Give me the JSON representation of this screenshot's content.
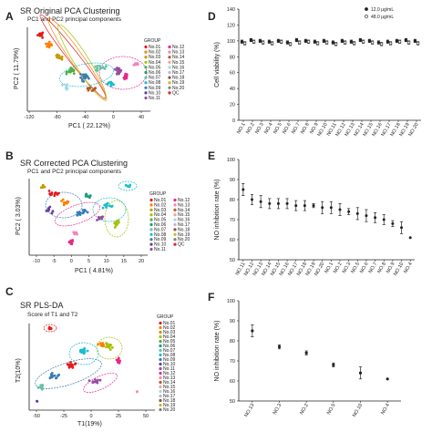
{
  "colors": {
    "group": [
      "#e41a1c",
      "#ff7f00",
      "#c49a00",
      "#a6c000",
      "#4daf4a",
      "#1b9e77",
      "#66c2a5",
      "#17becf",
      "#377eb8",
      "#6a3d9a",
      "#984ea3",
      "#e7298a",
      "#f781bf",
      "#b15928",
      "#ff9896",
      "#9edae5",
      "#c5b0d5",
      "#8c564b",
      "#bcbd22",
      "#7f7f7f",
      "#d62728"
    ],
    "ink": "#222222"
  },
  "chart_data": [
    {
      "panel": "A",
      "type": "scatter",
      "title": "SR Original PCA Clustering",
      "subtitle": "PC1 and PC2 principal components",
      "xlabel": "PC1 ( 22.12%)",
      "ylabel": "PC2 ( 11.79%)",
      "xticks": [
        "-120",
        "-80",
        "-40",
        "0",
        "40"
      ],
      "xlim": [
        -120,
        80
      ],
      "ylim": [
        -80,
        80
      ],
      "grid": false,
      "legend_title": "GROUP",
      "legend": [
        "No.01",
        "No.02",
        "No.03",
        "No.04",
        "No.05",
        "No.06",
        "No.07",
        "No.08",
        "No.09",
        "No.10",
        "No.11",
        "No.12",
        "No.13",
        "No.14",
        "No.15",
        "No.16",
        "No.17",
        "No.18",
        "No.19",
        "No.20",
        "QC"
      ],
      "legend_placement": "right"
    },
    {
      "panel": "B",
      "type": "scatter",
      "title": "SR Corrected PCA Clustering",
      "subtitle": "PC1 and PC2 principal components",
      "xlabel": "PC1 ( 4.81%)",
      "ylabel": "PC2 ( 3.03%)",
      "xticks": [
        "-10",
        "-5",
        "0",
        "5",
        "10",
        "15",
        "20"
      ],
      "xlim": [
        -15,
        22
      ],
      "ylim": [
        -22,
        12
      ],
      "grid": false,
      "legend_title": "GROUP",
      "legend": [
        "No.01",
        "No.02",
        "No.03",
        "No.04",
        "No.05",
        "No.06",
        "No.07",
        "No.08",
        "No.09",
        "No.10",
        "No.11",
        "No.12",
        "No.13",
        "No.14",
        "No.15",
        "No.16",
        "No.17",
        "No.18",
        "No.19",
        "No.20",
        "QC"
      ],
      "legend_placement": "right"
    },
    {
      "panel": "C",
      "type": "scatter",
      "title": "SR PLS-DA",
      "subtitle": "Score of T1 and T2",
      "xlabel": "T1(19%)",
      "ylabel": "T2(10%)",
      "xticks": [
        "-50",
        "-25",
        "0",
        "25",
        "50"
      ],
      "xlim": [
        -60,
        60
      ],
      "ylim": [
        -50,
        30
      ],
      "grid": false,
      "legend_title": "GROUP",
      "legend": [
        "No.01",
        "No.02",
        "No.03",
        "No.04",
        "No.05",
        "No.06",
        "No.07",
        "No.08",
        "No.09",
        "No.10",
        "No.11",
        "No.12",
        "No.13",
        "No.14",
        "No.15",
        "No.16",
        "No.17",
        "No.18",
        "No.19",
        "No.20"
      ],
      "legend_placement": "right"
    },
    {
      "panel": "D",
      "type": "scatter",
      "xlabel": "",
      "ylabel": "Cell viability (%)",
      "categories": [
        "NO.1",
        "NO.2",
        "NO.3",
        "NO.4",
        "NO.5",
        "NO.6",
        "NO.7",
        "NO.8",
        "NO.9",
        "NO.10",
        "NO.11",
        "NO.12",
        "NO.13",
        "NO.14",
        "NO.15",
        "NO.16",
        "NO.17",
        "NO.18",
        "NO.19",
        "NO.20"
      ],
      "ylim": [
        0,
        140
      ],
      "yticks": [
        0,
        20,
        40,
        60,
        80,
        100,
        120,
        140
      ],
      "series": [
        {
          "name": "12.0 μg/mL",
          "values": [
            99,
            101,
            100,
            99,
            100,
            98,
            101,
            100,
            99,
            100,
            98,
            100,
            99,
            101,
            100,
            98,
            99,
            100,
            101,
            100
          ]
        },
        {
          "name": "48.0 μg/mL",
          "values": [
            97,
            99,
            98,
            97,
            99,
            96,
            98,
            99,
            97,
            98,
            96,
            98,
            97,
            99,
            98,
            96,
            97,
            99,
            98,
            97
          ]
        }
      ],
      "error": 2,
      "legend_placement": "top-right"
    },
    {
      "panel": "E",
      "type": "scatter",
      "xlabel": "",
      "ylabel": "NO inhibition rate (%)",
      "categories": [
        "NO.11",
        "NO.12",
        "NO.13",
        "NO.14",
        "NO.15",
        "NO.16",
        "NO.17",
        "NO.18",
        "NO.19",
        "NO.20",
        "NO.1",
        "NO.2",
        "NO.3",
        "NO.5",
        "NO.6",
        "NO.7",
        "NO.8",
        "NO.9",
        "NO.10",
        "NO.4"
      ],
      "values": [
        85,
        80,
        79,
        78,
        78,
        78,
        77,
        77,
        77,
        76,
        76,
        75,
        74,
        73,
        72,
        71,
        70,
        68,
        66,
        61
      ],
      "errors": [
        3,
        2.5,
        3,
        2.5,
        2.5,
        2.5,
        2.5,
        2.5,
        1,
        3,
        3,
        3,
        1.5,
        3,
        3,
        2.5,
        2.5,
        1.5,
        3,
        0
      ],
      "ylim": [
        50,
        100
      ],
      "yticks": [
        50,
        60,
        70,
        80,
        90,
        100
      ]
    },
    {
      "panel": "F",
      "type": "scatter",
      "xlabel": "",
      "ylabel": "NO inhibition rate (%)",
      "categories": [
        "NO.13",
        "NO.3",
        "NO.2",
        "NO.5",
        "NO.10",
        "NO.4"
      ],
      "values": [
        85,
        77,
        74,
        68,
        64,
        61
      ],
      "errors": [
        3,
        1,
        1,
        1,
        3,
        0
      ],
      "ylim": [
        50,
        100
      ],
      "yticks": [
        50,
        60,
        70,
        80,
        90,
        100
      ]
    }
  ]
}
